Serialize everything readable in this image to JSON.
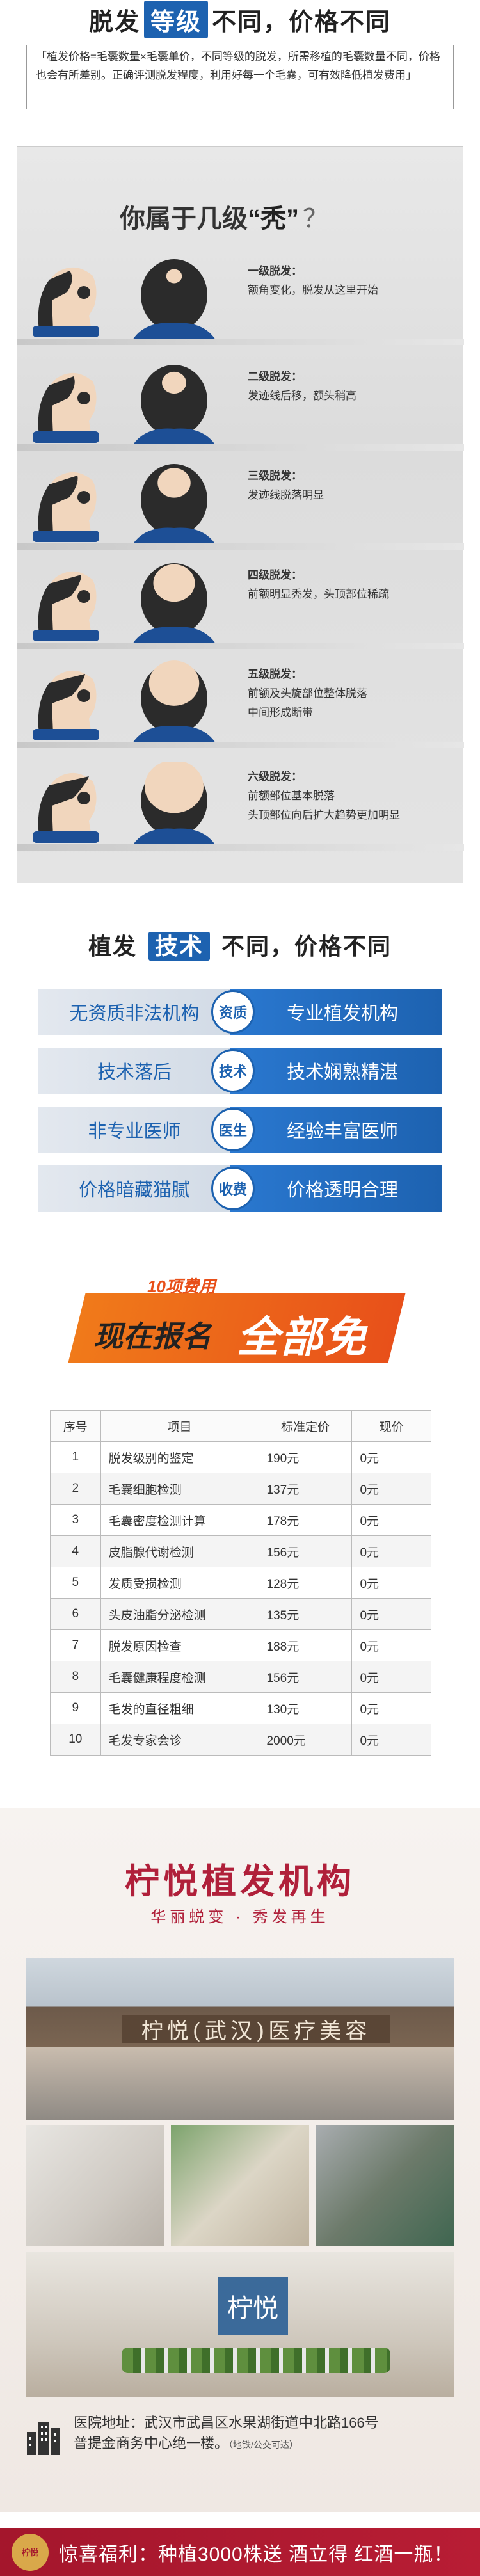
{
  "section1": {
    "title_a": "脱发",
    "title_hl": "等级",
    "title_b": "不同，价格不同",
    "intro": "「植发价格=毛囊数量×毛囊单价，不同等级的脱发，所需移植的毛囊数量不同，价格也会有所差别。正确评测脱发程度，利用好每一个毛囊，可有效降低植发费用」"
  },
  "baldness": {
    "title_a": "你属于几级",
    "title_q": "“秃”",
    "title_mark": "？",
    "levels": [
      {
        "name": "一级脱发：",
        "desc1": "额角变化，脱发从这里开始",
        "desc2": ""
      },
      {
        "name": "二级脱发：",
        "desc1": "发迹线后移，额头稍高",
        "desc2": ""
      },
      {
        "name": "三级脱发：",
        "desc1": "发迹线脱落明显",
        "desc2": ""
      },
      {
        "name": "四级脱发：",
        "desc1": "前额明显秃发，头顶部位稀疏",
        "desc2": ""
      },
      {
        "name": "五级脱发：",
        "desc1": "前额及头旋部位整体脱落",
        "desc2": "中间形成断带"
      },
      {
        "name": "六级脱发：",
        "desc1": "前额部位基本脱落",
        "desc2": "头顶部位向后扩大趋势更加明显"
      }
    ]
  },
  "section2": {
    "title_a": "植发",
    "title_hl": "技术",
    "title_b": "不同，价格不同",
    "rows": [
      {
        "left": "无资质非法机构",
        "mid": "资质",
        "right": "专业植发机构"
      },
      {
        "left": "技术落后",
        "mid": "技术",
        "right": "技术娴熟精湛"
      },
      {
        "left": "非专业医师",
        "mid": "医生",
        "right": "经验丰富医师"
      },
      {
        "left": "价格暗藏猫腻",
        "mid": "收费",
        "right": "价格透明合理"
      }
    ]
  },
  "banner": {
    "small": "10项费用",
    "big1": "现在报名",
    "big2": "全部免费"
  },
  "fee_table": {
    "headers": [
      "序号",
      "项目",
      "标准定价",
      "现价"
    ],
    "rows": [
      [
        "1",
        "脱发级别的鉴定",
        "190元",
        "0元"
      ],
      [
        "2",
        "毛囊细胞检测",
        "137元",
        "0元"
      ],
      [
        "3",
        "毛囊密度检测计算",
        "178元",
        "0元"
      ],
      [
        "4",
        "皮脂腺代谢检测",
        "156元",
        "0元"
      ],
      [
        "5",
        "发质受损检测",
        "128元",
        "0元"
      ],
      [
        "6",
        "头皮油脂分泌检测",
        "135元",
        "0元"
      ],
      [
        "7",
        "脱发原因检查",
        "188元",
        "0元"
      ],
      [
        "8",
        "毛囊健康程度检测",
        "156元",
        "0元"
      ],
      [
        "9",
        "毛发的直径粗细",
        "130元",
        "0元"
      ],
      [
        "10",
        "毛发专家会诊",
        "2000元",
        "0元"
      ]
    ]
  },
  "clinic": {
    "title": "柠悦植发机构",
    "subtitle": "华丽蜕变 · 秀发再生",
    "sign": "柠悦(武汉)医疗美容",
    "lobby_logo": "柠悦",
    "address_line1": "医院地址：武汉市武昌区水果湖街道中北路166号",
    "address_line2": "普提金商务中心绝一楼。",
    "address_note": "（地铁/公交可达）"
  },
  "footer": {
    "logo_text": "柠悦",
    "text": "惊喜福利：种植3000株送 酒立得 红酒一瓶！"
  },
  "colors": {
    "brand_blue": "#1d62b0",
    "brand_red": "#b0203a",
    "banner_orange": "#e8501a"
  }
}
